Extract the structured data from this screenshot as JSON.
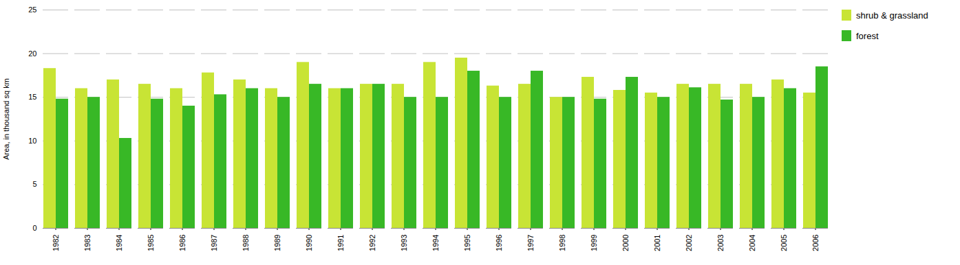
{
  "chart_data": {
    "type": "bar",
    "categories": [
      "1982",
      "1983",
      "1984",
      "1985",
      "1986",
      "1987",
      "1988",
      "1989",
      "1990",
      "1991",
      "1992",
      "1993",
      "1994",
      "1995",
      "1996",
      "1997",
      "1998",
      "1999",
      "2000",
      "2001",
      "2002",
      "2003",
      "2004",
      "2005",
      "2006"
    ],
    "series": [
      {
        "name": "shrub & grassland",
        "color": "#c8e435",
        "values": [
          18.3,
          16.0,
          17.0,
          16.5,
          16.0,
          17.8,
          17.0,
          16.0,
          19.0,
          16.0,
          16.5,
          16.5,
          19.0,
          19.5,
          16.3,
          16.5,
          15.0,
          17.3,
          15.8,
          15.5,
          16.5,
          16.5,
          16.5,
          17.0,
          15.5
        ]
      },
      {
        "name": "forest",
        "color": "#38b826",
        "values": [
          14.8,
          15.0,
          10.3,
          14.8,
          14.0,
          15.3,
          16.0,
          15.0,
          16.5,
          16.0,
          16.5,
          15.0,
          15.0,
          18.0,
          15.0,
          18.0,
          15.0,
          14.8,
          17.3,
          15.0,
          16.1,
          14.7,
          15.0,
          16.0,
          18.5
        ]
      }
    ],
    "ylabel": "Area, in thousand sq km",
    "ylim": [
      0,
      25
    ],
    "yticks": [
      0,
      5,
      10,
      15,
      20,
      25
    ],
    "grid": true,
    "legend": "right"
  }
}
